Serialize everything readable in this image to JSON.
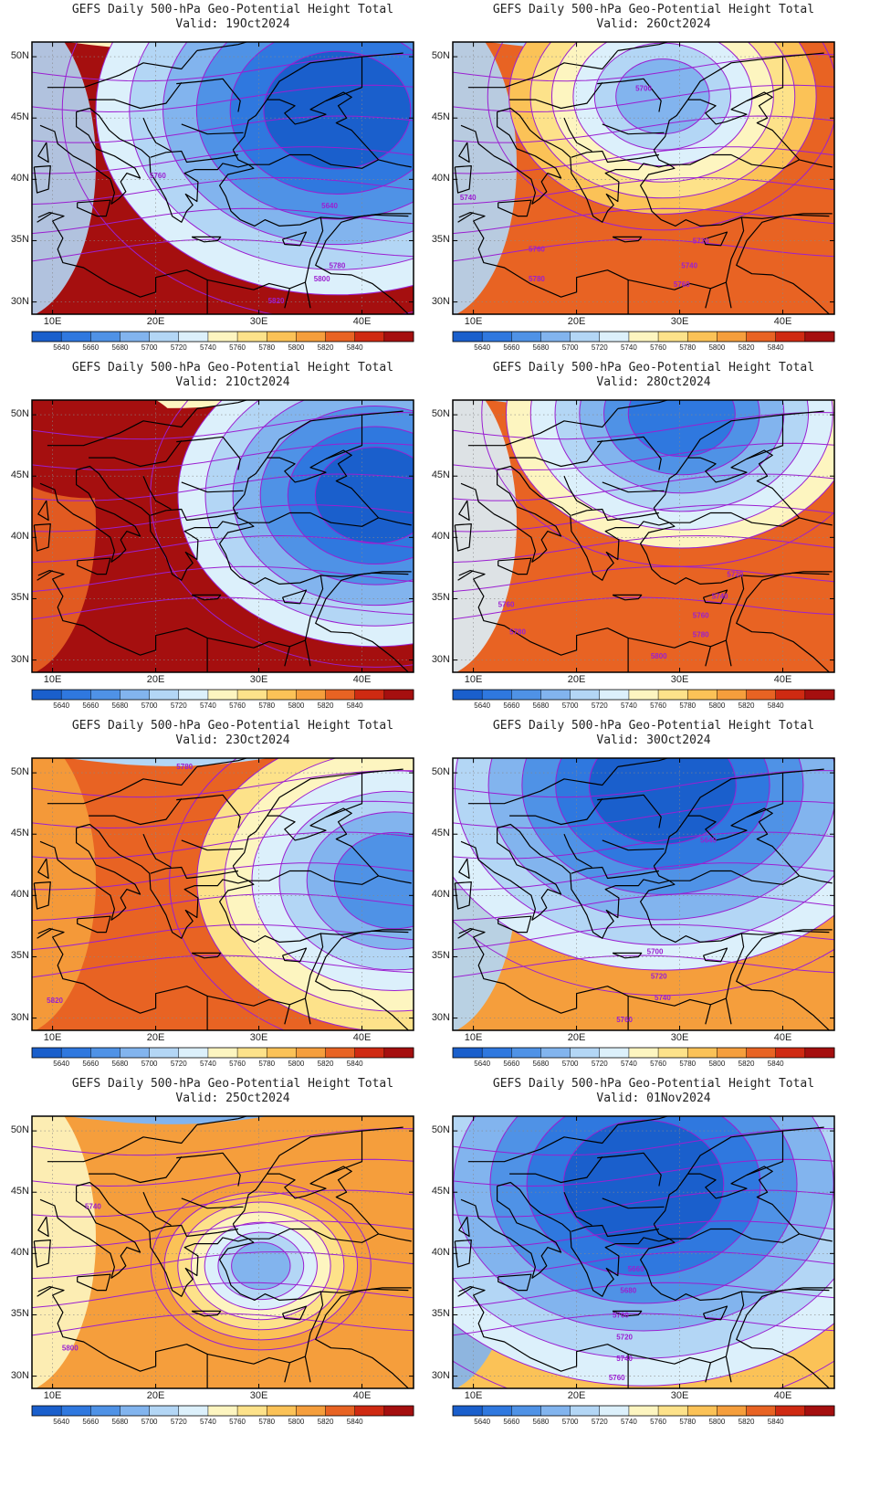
{
  "title": "GEFS Daily 500-hPa Geo-Potential Height Total",
  "latitude_labels": [
    "50N",
    "45N",
    "40N",
    "35N",
    "30N"
  ],
  "longitude_labels": [
    "10E",
    "20E",
    "30E",
    "40E"
  ],
  "colorbar": {
    "levels": [
      "5640",
      "5660",
      "5680",
      "5700",
      "5720",
      "5740",
      "5760",
      "5780",
      "5800",
      "5820",
      "5840"
    ],
    "colors": [
      "#1a5fcc",
      "#2f78df",
      "#4f92e6",
      "#82b4ee",
      "#b3d6f5",
      "#dcf0fb",
      "#fdf5c0",
      "#fde28a",
      "#fbc257",
      "#f59e3c",
      "#e86323",
      "#cf2a12",
      "#a50f0f"
    ]
  },
  "contour_color": "#9b1fd1",
  "panels": [
    {
      "valid": "Valid: 19Oct2024",
      "contour_labels": [
        {
          "text": "5760"
        },
        {
          "text": "5640"
        },
        {
          "text": "5780"
        },
        {
          "text": "5800"
        },
        {
          "text": "5820"
        }
      ]
    },
    {
      "valid": "Valid: 26Oct2024",
      "contour_labels": [
        {
          "text": "5700"
        },
        {
          "text": "5740"
        },
        {
          "text": "5720"
        },
        {
          "text": "5760"
        },
        {
          "text": "5740"
        },
        {
          "text": "5780"
        },
        {
          "text": "5760"
        }
      ]
    },
    {
      "valid": "Valid: 21Oct2024",
      "contour_labels": []
    },
    {
      "valid": "Valid: 28Oct2024",
      "contour_labels": [
        {
          "text": "5720"
        },
        {
          "text": "5740"
        },
        {
          "text": "5760"
        },
        {
          "text": "5760"
        },
        {
          "text": "5780"
        },
        {
          "text": "5780"
        },
        {
          "text": "5800"
        }
      ]
    },
    {
      "valid": "Valid: 23Oct2024",
      "contour_labels": [
        {
          "text": "5780"
        },
        {
          "text": "5820"
        }
      ]
    },
    {
      "valid": "Valid: 30Oct2024",
      "contour_labels": [
        {
          "text": "5640"
        },
        {
          "text": "5700"
        },
        {
          "text": "5720"
        },
        {
          "text": "5740"
        },
        {
          "text": "5760"
        }
      ]
    },
    {
      "valid": "Valid: 25Oct2024",
      "contour_labels": [
        {
          "text": "5740"
        },
        {
          "text": "5800"
        }
      ]
    },
    {
      "valid": "Valid: 01Nov2024",
      "contour_labels": [
        {
          "text": "5660"
        },
        {
          "text": "5680"
        },
        {
          "text": "5700"
        },
        {
          "text": "5720"
        },
        {
          "text": "5740"
        },
        {
          "text": "5760"
        }
      ]
    }
  ]
}
